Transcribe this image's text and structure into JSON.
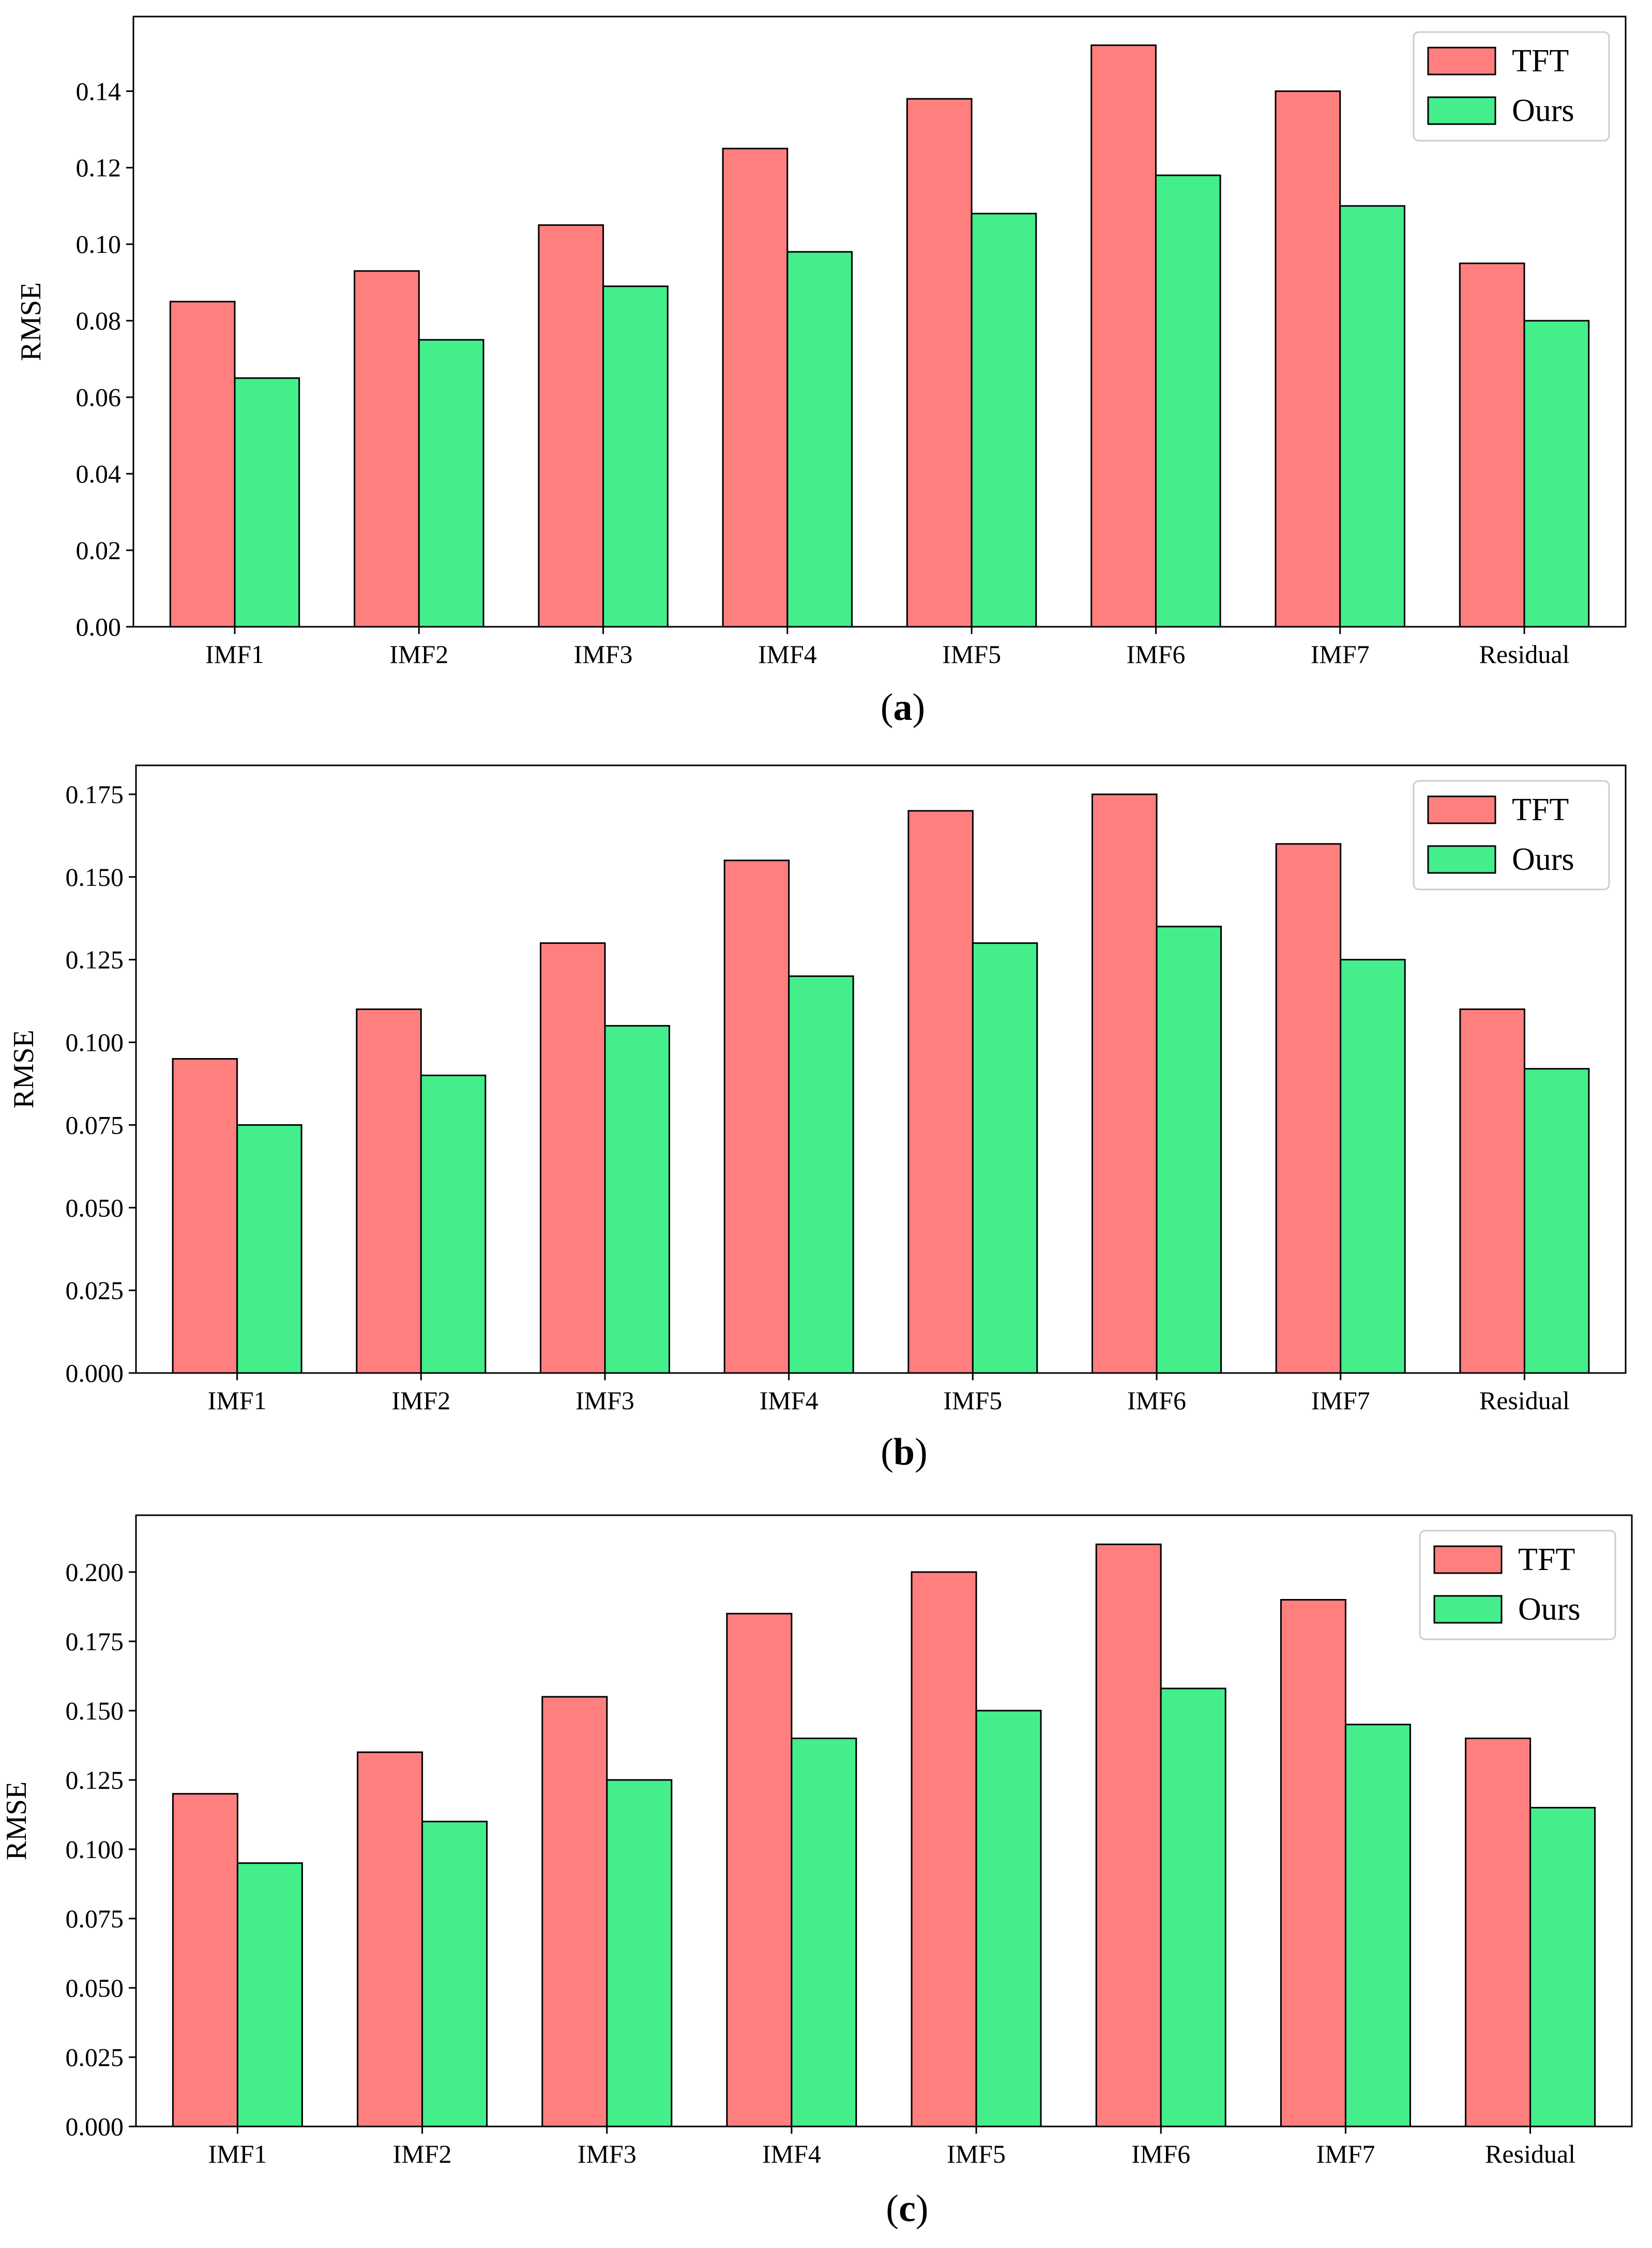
{
  "colors": {
    "series_tft": "#FF7F7F",
    "series_ours": "#43EE8B",
    "edge": "#000000",
    "background": "#FFFFFF"
  },
  "chart_data": [
    {
      "type": "bar",
      "caption": "a",
      "title": "",
      "xlabel": "",
      "ylabel": "RMSE",
      "categories": [
        "IMF1",
        "IMF2",
        "IMF3",
        "IMF4",
        "IMF5",
        "IMF6",
        "IMF7",
        "Residual"
      ],
      "series": [
        {
          "name": "TFT",
          "values": [
            0.085,
            0.093,
            0.105,
            0.125,
            0.138,
            0.152,
            0.14,
            0.095
          ]
        },
        {
          "name": "Ours",
          "values": [
            0.065,
            0.075,
            0.089,
            0.098,
            0.108,
            0.118,
            0.11,
            0.08
          ]
        }
      ],
      "ylim": [
        0,
        0.1595
      ],
      "yticks": [
        "0.00",
        "0.02",
        "0.04",
        "0.06",
        "0.08",
        "0.10",
        "0.12",
        "0.14"
      ],
      "grid": false,
      "legend": "top-right"
    },
    {
      "type": "bar",
      "caption": "b",
      "title": "",
      "xlabel": "",
      "ylabel": "RMSE",
      "categories": [
        "IMF1",
        "IMF2",
        "IMF3",
        "IMF4",
        "IMF5",
        "IMF6",
        "IMF7",
        "Residual"
      ],
      "series": [
        {
          "name": "TFT",
          "values": [
            0.095,
            0.11,
            0.13,
            0.155,
            0.17,
            0.175,
            0.16,
            0.11
          ]
        },
        {
          "name": "Ours",
          "values": [
            0.075,
            0.09,
            0.105,
            0.12,
            0.13,
            0.135,
            0.125,
            0.092
          ]
        }
      ],
      "ylim": [
        0,
        0.18375
      ],
      "yticks": [
        "0.000",
        "0.025",
        "0.050",
        "0.075",
        "0.100",
        "0.125",
        "0.150",
        "0.175"
      ],
      "grid": false,
      "legend": "top-right"
    },
    {
      "type": "bar",
      "caption": "c",
      "title": "",
      "xlabel": "",
      "ylabel": "RMSE",
      "categories": [
        "IMF1",
        "IMF2",
        "IMF3",
        "IMF4",
        "IMF5",
        "IMF6",
        "IMF7",
        "Residual"
      ],
      "series": [
        {
          "name": "TFT",
          "values": [
            0.12,
            0.135,
            0.155,
            0.185,
            0.2,
            0.21,
            0.19,
            0.14
          ]
        },
        {
          "name": "Ours",
          "values": [
            0.095,
            0.11,
            0.125,
            0.14,
            0.15,
            0.158,
            0.145,
            0.115
          ]
        }
      ],
      "ylim": [
        0,
        0.2205
      ],
      "yticks": [
        "0.000",
        "0.025",
        "0.050",
        "0.075",
        "0.100",
        "0.125",
        "0.150",
        "0.175",
        "0.200"
      ],
      "grid": false,
      "legend": "top-right"
    }
  ]
}
